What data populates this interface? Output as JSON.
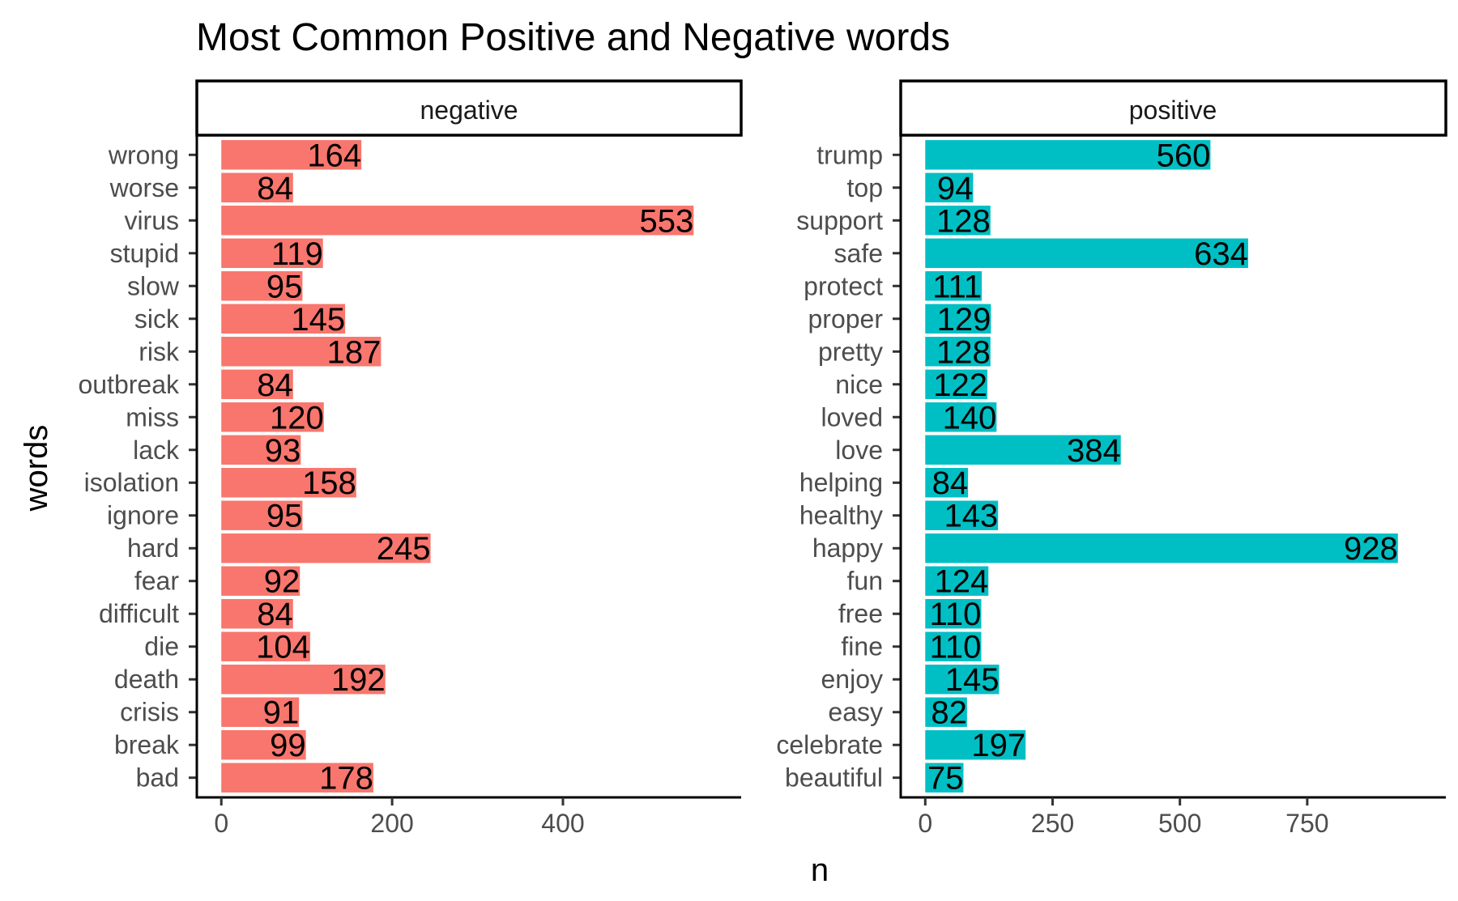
{
  "chart_data": {
    "type": "bar",
    "orientation": "horizontal",
    "title": "Most Common Positive and Negative words",
    "xlabel": "n",
    "ylabel": "words",
    "grid": false,
    "legend": "none",
    "panels": [
      {
        "name": "negative",
        "color": "#F8766D",
        "xlim": [
          0,
          580
        ],
        "xticks": [
          0,
          200,
          400
        ],
        "categories": [
          "wrong",
          "worse",
          "virus",
          "stupid",
          "slow",
          "sick",
          "risk",
          "outbreak",
          "miss",
          "lack",
          "isolation",
          "ignore",
          "hard",
          "fear",
          "difficult",
          "die",
          "death",
          "crisis",
          "break",
          "bad"
        ],
        "values": [
          164,
          84,
          553,
          119,
          95,
          145,
          187,
          84,
          120,
          93,
          158,
          95,
          245,
          92,
          84,
          104,
          192,
          91,
          99,
          178
        ]
      },
      {
        "name": "positive",
        "color": "#00BFC4",
        "xlim": [
          0,
          974
        ],
        "xticks": [
          0,
          250,
          500,
          750
        ],
        "categories": [
          "trump",
          "top",
          "support",
          "safe",
          "protect",
          "proper",
          "pretty",
          "nice",
          "loved",
          "love",
          "helping",
          "healthy",
          "happy",
          "fun",
          "free",
          "fine",
          "enjoy",
          "easy",
          "celebrate",
          "beautiful"
        ],
        "values": [
          560,
          94,
          128,
          634,
          111,
          129,
          128,
          122,
          140,
          384,
          84,
          143,
          928,
          124,
          110,
          110,
          145,
          82,
          197,
          75
        ]
      }
    ]
  }
}
